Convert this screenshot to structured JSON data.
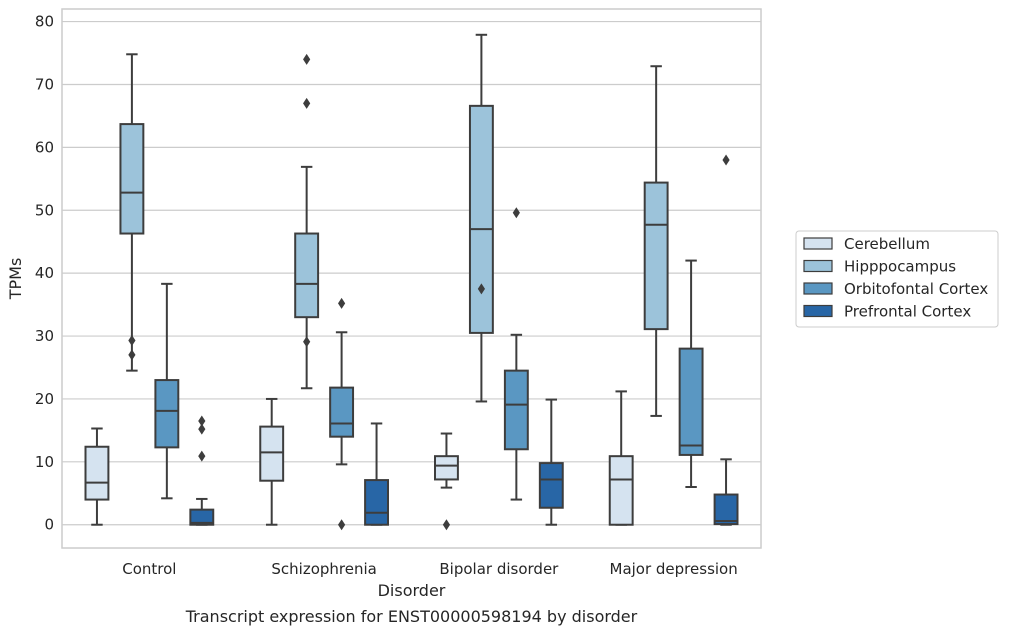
{
  "caption": "Transcript expression for ENST00000598194 by disorder",
  "chart_data": {
    "type": "box",
    "xlabel": "Disorder",
    "ylabel": "TPMs",
    "ylim": [
      -3.7,
      82
    ],
    "yticks": [
      0,
      10,
      20,
      30,
      40,
      50,
      60,
      70,
      80
    ],
    "grid": "horizontal",
    "legend_position": "right",
    "categories": [
      "Control",
      "Schizophrenia",
      "Bipolar disorder",
      "Major depression"
    ],
    "series": [
      {
        "name": "Cerebellum",
        "color": "#d5e3f0",
        "boxes": [
          {
            "whisker_low": 0,
            "q1": 4,
            "median": 6.7,
            "q3": 12.4,
            "whisker_high": 15.3,
            "outliers": []
          },
          {
            "whisker_low": 0,
            "q1": 7,
            "median": 11.5,
            "q3": 15.6,
            "whisker_high": 20,
            "outliers": []
          },
          {
            "whisker_low": 5.9,
            "q1": 7.2,
            "median": 9.4,
            "q3": 10.9,
            "whisker_high": 14.5,
            "outliers": [
              0
            ]
          },
          {
            "whisker_low": 0,
            "q1": 0,
            "median": 7.2,
            "q3": 10.9,
            "whisker_high": 21.2,
            "outliers": []
          }
        ]
      },
      {
        "name": "Hipppocampus",
        "color": "#9cc3da",
        "boxes": [
          {
            "whisker_low": 24.5,
            "q1": 46.3,
            "median": 52.8,
            "q3": 63.7,
            "whisker_high": 74.8,
            "outliers": [
              29.3,
              27
            ]
          },
          {
            "whisker_low": 21.7,
            "q1": 33,
            "median": 38.3,
            "q3": 46.3,
            "whisker_high": 56.9,
            "outliers": [
              29.1,
              67,
              74
            ]
          },
          {
            "whisker_low": 19.6,
            "q1": 30.5,
            "median": 47,
            "q3": 66.6,
            "whisker_high": 77.9,
            "outliers": [
              37.5
            ]
          },
          {
            "whisker_low": 17.3,
            "q1": 31.1,
            "median": 47.7,
            "q3": 54.4,
            "whisker_high": 72.9,
            "outliers": []
          }
        ]
      },
      {
        "name": "Orbitofontal Cortex",
        "color": "#5a97c2",
        "boxes": [
          {
            "whisker_low": 4.2,
            "q1": 12.3,
            "median": 18.1,
            "q3": 23,
            "whisker_high": 38.3,
            "outliers": []
          },
          {
            "whisker_low": 9.6,
            "q1": 14,
            "median": 16.1,
            "q3": 21.8,
            "whisker_high": 30.6,
            "outliers": [
              35.2,
              0
            ]
          },
          {
            "whisker_low": 4,
            "q1": 12,
            "median": 19.1,
            "q3": 24.5,
            "whisker_high": 30.2,
            "outliers": [
              49.6
            ]
          },
          {
            "whisker_low": 6,
            "q1": 11.1,
            "median": 12.6,
            "q3": 28,
            "whisker_high": 42,
            "outliers": []
          }
        ]
      },
      {
        "name": "Prefrontal Cortex",
        "color": "#2866a6",
        "boxes": [
          {
            "whisker_low": 0,
            "q1": 0,
            "median": 0.3,
            "q3": 2.4,
            "whisker_high": 4.1,
            "outliers": [
              16.5,
              15.2,
              10.9
            ]
          },
          {
            "whisker_low": 0,
            "q1": 0,
            "median": 1.9,
            "q3": 7.1,
            "whisker_high": 16.1,
            "outliers": []
          },
          {
            "whisker_low": 0,
            "q1": 2.7,
            "median": 7.2,
            "q3": 9.8,
            "whisker_high": 19.9,
            "outliers": []
          },
          {
            "whisker_low": 0,
            "q1": 0.1,
            "median": 0.6,
            "q3": 4.8,
            "whisker_high": 10.4,
            "outliers": [
              58
            ]
          }
        ]
      }
    ]
  }
}
